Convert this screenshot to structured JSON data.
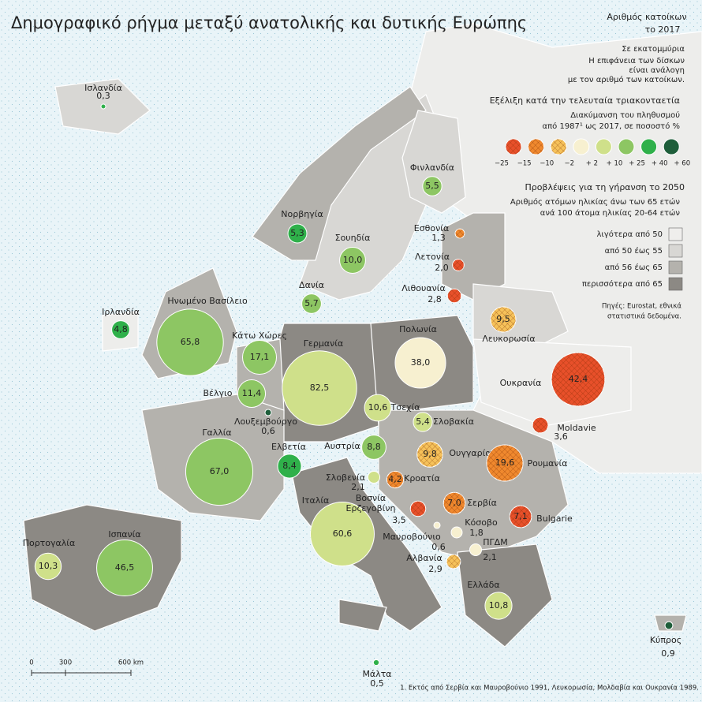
{
  "title": "Δημογραφικό ρήγμα μεταξύ ανατολικής και δυτικής Ευρώπης",
  "population_legend": {
    "lines": [
      "Αριθμός κατοίκων",
      "το 2017"
    ],
    "unit": "Σε εκατομμύρια",
    "note": [
      "Η επιφάνεια των δίσκων",
      "είναι ανάλογη",
      "με τον αριθμό των κατοίκων."
    ]
  },
  "change_legend": {
    "title": "Εξέλιξη κατά την τελευταία τριακονταετία",
    "subtitle": [
      "Διακύμανση του πληθυσμού",
      "από 1987¹ ως 2017, σε ποσοστό %"
    ],
    "colors": [
      "#e8502a",
      "#f0892e",
      "#f6c25a",
      "#f7f0d0",
      "#cfe08a",
      "#8dc663",
      "#2fb04a",
      "#1e5e3a"
    ],
    "hatch": [
      true,
      true,
      true,
      false,
      false,
      false,
      false,
      false
    ],
    "labels": [
      "−25",
      "−15",
      "−10",
      "−2",
      "+ 2",
      "+ 10",
      "+ 25",
      "+ 40",
      "+ 60"
    ]
  },
  "aging_legend": {
    "title": "Προβλέψεις για τη γήρανση το  2050",
    "subtitle": [
      "Αριθμός ατόμων ηλικίας άνω των 65 ετών",
      "ανά 100 άτομα ηλικίας 20-64 ετών"
    ],
    "items": [
      {
        "label": "λιγότερα από 50",
        "color": "#efeeec"
      },
      {
        "label": "από 50 έως 55",
        "color": "#d8d7d4"
      },
      {
        "label": "από 56 έως 65",
        "color": "#b4b2ad"
      },
      {
        "label": "περισσότερα από 65",
        "color": "#8c8984"
      }
    ]
  },
  "source": [
    "Πηγές: Eurostat, εθνικά",
    "στατιστικά δεδομένα."
  ],
  "scale": [
    "0",
    "300",
    "600 km"
  ],
  "footnote": "1. Εκτός από Σερβία και Μαυροβούνιο 1991, Λευκορωσία, Μολδαβία και Ουκρανία 1989.",
  "countries": [
    {
      "name": "Ισλανδία",
      "value": 0.3,
      "value_label": "0,3",
      "color": "#2fb04a"
    },
    {
      "name": "Φινλανδία",
      "value": 5.5,
      "value_label": "5,5",
      "color": "#8dc663"
    },
    {
      "name": "Νορβηγία",
      "value": 5.3,
      "value_label": "5,3",
      "color": "#2fb04a"
    },
    {
      "name": "Σουηδία",
      "value": 10.0,
      "value_label": "10,0",
      "color": "#8dc663"
    },
    {
      "name": "Εσθονία",
      "value": 1.3,
      "value_label": "1,3",
      "color": "#f0892e",
      "hatch": true
    },
    {
      "name": "Λετονία",
      "value": 2.0,
      "value_label": "2,0",
      "color": "#e8502a",
      "hatch": true
    },
    {
      "name": "Λιθουανία",
      "value": 2.8,
      "value_label": "2,8",
      "color": "#e8502a",
      "hatch": true
    },
    {
      "name": "Δανία",
      "value": 5.7,
      "value_label": "5,7",
      "color": "#8dc663"
    },
    {
      "name": "Ιρλανδία",
      "value": 4.8,
      "value_label": "4,8",
      "color": "#2fb04a"
    },
    {
      "name": "Ηνωμένο Βασίλειο",
      "value": 65.8,
      "value_label": "65,8",
      "color": "#8dc663"
    },
    {
      "name": "Κάτω Χώρες",
      "value": 17.1,
      "value_label": "17,1",
      "color": "#8dc663"
    },
    {
      "name": "Γερμανία",
      "value": 82.5,
      "value_label": "82,5",
      "color": "#cfe08a"
    },
    {
      "name": "Πολωνία",
      "value": 38.0,
      "value_label": "38,0",
      "color": "#f7f0d0"
    },
    {
      "name": "Λευκορωσία",
      "value": 9.5,
      "value_label": "9,5",
      "color": "#f6c25a",
      "hatch": true
    },
    {
      "name": "Ουκρανία",
      "value": 42.4,
      "value_label": "42,4",
      "color": "#e8502a",
      "hatch": true
    },
    {
      "name": "Βέλγιο",
      "value": 11.4,
      "value_label": "11,4",
      "color": "#8dc663"
    },
    {
      "name": "Λουξεμβούργο",
      "value": 0.6,
      "value_label": "0,6",
      "color": "#1e5e3a"
    },
    {
      "name": "Τσεχία",
      "value": 10.6,
      "value_label": "10,6",
      "color": "#cfe08a"
    },
    {
      "name": "Σλοβακία",
      "value": 5.4,
      "value_label": "5,4",
      "color": "#cfe08a"
    },
    {
      "name": "Moldavie",
      "value": 3.6,
      "value_label": "3,6",
      "color": "#e8502a",
      "hatch": true
    },
    {
      "name": "Γαλλία",
      "value": 67.0,
      "value_label": "67,0",
      "color": "#8dc663"
    },
    {
      "name": "Ελβετία",
      "value": 8.4,
      "value_label": "8,4",
      "color": "#2fb04a"
    },
    {
      "name": "Αυστρία",
      "value": 8.8,
      "value_label": "8,8",
      "color": "#8dc663"
    },
    {
      "name": "Ουγγαρία",
      "value": 9.8,
      "value_label": "9,8",
      "color": "#f6c25a",
      "hatch": true
    },
    {
      "name": "Ρουμανία",
      "value": 19.6,
      "value_label": "19,6",
      "color": "#f0892e",
      "hatch": true
    },
    {
      "name": "Σλοβενία",
      "value": 2.1,
      "value_label": "2,1",
      "color": "#cfe08a"
    },
    {
      "name": "Κροατία",
      "value": 4.2,
      "value_label": "4,2",
      "color": "#f0892e",
      "hatch": true
    },
    {
      "name": "Ιταλία",
      "value": 60.6,
      "value_label": "60,6",
      "color": "#cfe08a"
    },
    {
      "name": [
        "Βοσνία",
        "Ερζεγοβίνη"
      ],
      "value": 3.5,
      "value_label": "3,5",
      "color": "#e8502a",
      "hatch": true
    },
    {
      "name": "Σερβία",
      "value": 7.0,
      "value_label": "7,0",
      "color": "#f0892e",
      "hatch": true
    },
    {
      "name": "Bulgarie",
      "value": 7.1,
      "value_label": "7,1",
      "color": "#e8502a",
      "hatch": true
    },
    {
      "name": "Κόσοβο",
      "value": 1.8,
      "value_label": "1,8",
      "color": "#f7f0d0"
    },
    {
      "name": "Μαυροβούνιο",
      "value": 0.6,
      "value_label": "0,6",
      "color": "#f7f0d0"
    },
    {
      "name": "ΠΓΔΜ",
      "value": 2.1,
      "value_label": "2,1",
      "color": "#f7f0d0"
    },
    {
      "name": "Αλβανία",
      "value": 2.9,
      "value_label": "2,9",
      "color": "#f6c25a",
      "hatch": true
    },
    {
      "name": "Πορτογαλία",
      "value": 10.3,
      "value_label": "10,3",
      "color": "#cfe08a"
    },
    {
      "name": "Ισπανία",
      "value": 46.5,
      "value_label": "46,5",
      "color": "#8dc663"
    },
    {
      "name": "Ελλάδα",
      "value": 10.8,
      "value_label": "10,8",
      "color": "#cfe08a"
    },
    {
      "name": "Μάλτα",
      "value": 0.5,
      "value_label": "0,5",
      "color": "#2fb04a"
    },
    {
      "name": "Κύπρος",
      "value": 0.9,
      "value_label": "0,9",
      "color": "#1e5e3a"
    }
  ]
}
